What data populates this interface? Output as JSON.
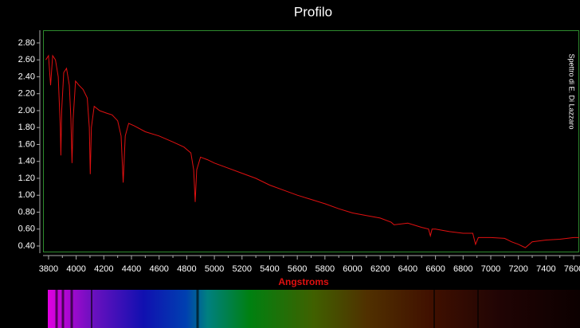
{
  "chart_data": {
    "type": "line",
    "title": "Profilo",
    "x_label": "Angstroms",
    "side_label": "Spettro di E. Di Lazzaro",
    "x": [
      3780,
      3800,
      3815,
      3830,
      3850,
      3870,
      3885,
      3889,
      3895,
      3910,
      3930,
      3950,
      3962,
      3970,
      3978,
      3995,
      4020,
      4050,
      4080,
      4095,
      4102,
      4110,
      4130,
      4170,
      4220,
      4260,
      4300,
      4325,
      4340,
      4355,
      4380,
      4420,
      4500,
      4600,
      4700,
      4780,
      4830,
      4850,
      4861,
      4872,
      4900,
      4950,
      5000,
      5100,
      5200,
      5300,
      5400,
      5500,
      5600,
      5700,
      5800,
      5900,
      6000,
      6100,
      6200,
      6280,
      6300,
      6400,
      6500,
      6550,
      6563,
      6575,
      6600,
      6700,
      6800,
      6870,
      6890,
      6910,
      7000,
      7100,
      7150,
      7200,
      7250,
      7300,
      7400,
      7500,
      7600,
      7640
    ],
    "series": [
      {
        "color": "#e01010",
        "values": [
          2.6,
          2.65,
          2.3,
          2.65,
          2.6,
          2.4,
          1.8,
          1.47,
          2.0,
          2.45,
          2.5,
          2.3,
          1.9,
          1.38,
          1.9,
          2.35,
          2.3,
          2.25,
          2.15,
          1.8,
          1.25,
          1.8,
          2.05,
          2.0,
          1.97,
          1.95,
          1.88,
          1.7,
          1.15,
          1.7,
          1.85,
          1.82,
          1.75,
          1.7,
          1.63,
          1.57,
          1.5,
          1.3,
          0.92,
          1.3,
          1.45,
          1.42,
          1.38,
          1.32,
          1.26,
          1.2,
          1.12,
          1.06,
          1.0,
          0.95,
          0.9,
          0.84,
          0.79,
          0.76,
          0.73,
          0.68,
          0.65,
          0.67,
          0.62,
          0.6,
          0.52,
          0.6,
          0.6,
          0.57,
          0.55,
          0.55,
          0.42,
          0.5,
          0.5,
          0.49,
          0.45,
          0.42,
          0.38,
          0.45,
          0.47,
          0.48,
          0.5,
          0.5
        ]
      }
    ],
    "xlim": [
      3760,
      7640
    ],
    "xticks": [
      3800,
      4000,
      4200,
      4400,
      4600,
      4800,
      5000,
      5200,
      5400,
      5600,
      5800,
      6000,
      6200,
      6400,
      6600,
      6800,
      7000,
      7200,
      7400,
      7600
    ],
    "ylim": [
      0.334,
      2.95
    ],
    "yticks": [
      {
        "value": 0.4,
        "label": "0.40"
      },
      {
        "value": 0.6,
        "label": "0.60"
      },
      {
        "value": 0.8,
        "label": "0.80"
      },
      {
        "value": 1.0,
        "label": "1.00"
      },
      {
        "value": 1.2,
        "label": "1.20"
      },
      {
        "value": 1.4,
        "label": "1.40"
      },
      {
        "value": 1.6,
        "label": "1.60"
      },
      {
        "value": 1.8,
        "label": "1.80"
      },
      {
        "value": 2.0,
        "label": "2.00"
      },
      {
        "value": 2.2,
        "label": "2.20"
      },
      {
        "value": 2.4,
        "label": "2.40"
      },
      {
        "value": 2.6,
        "label": "2.60"
      },
      {
        "value": 2.8,
        "label": "2.80"
      }
    ],
    "minor_xticks": [
      3900,
      4100,
      4300,
      4500,
      4700,
      4900,
      5100,
      5300,
      5500,
      5700,
      5900,
      6100,
      6300,
      6500,
      6700,
      6900,
      7100,
      7300,
      7500
    ],
    "grid": false
  }
}
